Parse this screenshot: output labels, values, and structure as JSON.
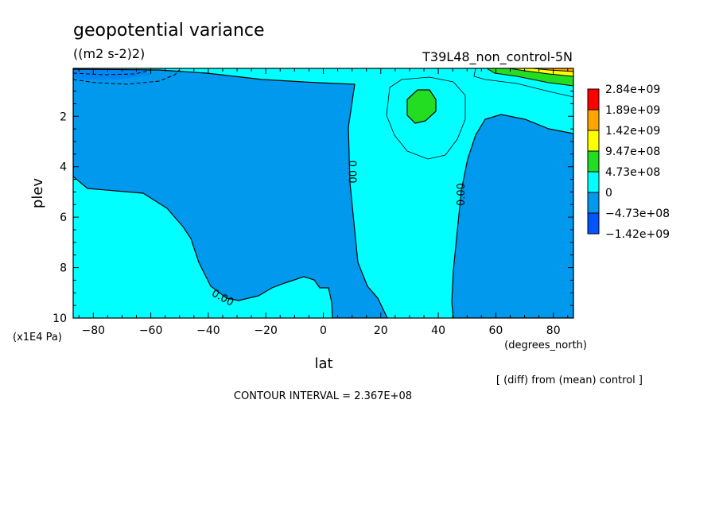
{
  "chart_data": {
    "type": "heatmap",
    "subtype": "filled-contour",
    "title": "geopotential variance",
    "units": "((m2 s-2)2)",
    "experiment": "T39L48_non_control-5N",
    "xlabel": "lat",
    "xunits": "(degrees_north)",
    "ylabel": "plev",
    "yunits": "(x1E4 Pa)",
    "xlim": [
      -87,
      87
    ],
    "ylim": [
      0.1,
      10
    ],
    "y_inverted": true,
    "x_ticks": [
      -80,
      -60,
      -40,
      -20,
      0,
      20,
      40,
      60,
      80
    ],
    "x_tick_labels": [
      "−80",
      "−60",
      "−40",
      "−20",
      "0",
      "20",
      "40",
      "60",
      "80"
    ],
    "y_ticks": [
      2,
      4,
      6,
      8,
      10
    ],
    "y_tick_labels": [
      "2",
      "4",
      "6",
      "8",
      "10"
    ],
    "contour_labels": [
      {
        "text": "0.00",
        "lat": -35,
        "plev": 9.2
      },
      {
        "text": "0.00",
        "lat": 10,
        "plev": 4.2
      },
      {
        "text": "0.00",
        "lat": 48,
        "plev": 5.1
      }
    ],
    "legend": {
      "placement": "right",
      "levels": [
        "2.84e+09",
        "1.89e+09",
        "1.42e+09",
        "9.47e+08",
        "4.73e+08",
        "0",
        "−4.73e+08",
        "−1.42e+09"
      ],
      "colors": [
        "#ff0000",
        "#ffa500",
        "#ffff00",
        "#22dd22",
        "#00ffff",
        "#0099ee",
        "#0055ff"
      ]
    },
    "note": "[ (diff) from (mean) control ]",
    "contour_interval": "CONTOUR INTERVAL = 2.367E+08"
  },
  "colors": {
    "positive_band": "#00ffff",
    "negative_band": "#0099ee",
    "green_band": "#22dd22",
    "yellow_band": "#ffff00",
    "orange_band": "#ffa500",
    "deep_negative": "#0055ff"
  }
}
